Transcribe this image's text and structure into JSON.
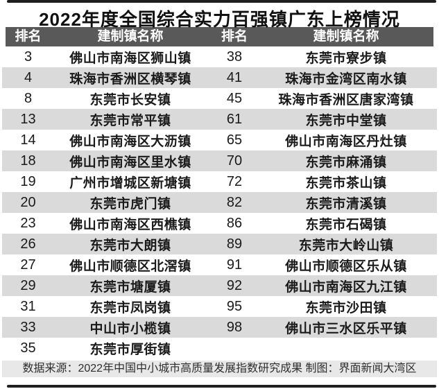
{
  "title": "2022年度全国综合实力百强镇广东上榜情况",
  "table": {
    "headers": {
      "rank_left": "排名",
      "name_left": "建制镇名称",
      "rank_right": "排名",
      "name_right": "建制镇名称"
    },
    "left_rows": [
      {
        "rank": "3",
        "name": "佛山市南海区狮山镇"
      },
      {
        "rank": "4",
        "name": "珠海市香洲区横琴镇"
      },
      {
        "rank": "8",
        "name": "东莞市长安镇"
      },
      {
        "rank": "13",
        "name": "东莞市常平镇"
      },
      {
        "rank": "14",
        "name": "佛山市南海区大沥镇"
      },
      {
        "rank": "18",
        "name": "佛山市南海区里水镇"
      },
      {
        "rank": "19",
        "name": "广州市增城区新塘镇"
      },
      {
        "rank": "20",
        "name": "东莞市虎门镇"
      },
      {
        "rank": "23",
        "name": "佛山市南海区西樵镇"
      },
      {
        "rank": "26",
        "name": "东莞市大朗镇"
      },
      {
        "rank": "27",
        "name": "佛山市顺德区北滘镇"
      },
      {
        "rank": "29",
        "name": "东莞市塘厦镇"
      },
      {
        "rank": "31",
        "name": "东莞市凤岗镇"
      },
      {
        "rank": "33",
        "name": "中山市小榄镇"
      },
      {
        "rank": "35",
        "name": "东莞市厚街镇"
      }
    ],
    "right_rows": [
      {
        "rank": "38",
        "name": "东莞市寮步镇"
      },
      {
        "rank": "41",
        "name": "珠海市金湾区南水镇"
      },
      {
        "rank": "45",
        "name": "珠海市香洲区唐家湾镇"
      },
      {
        "rank": "61",
        "name": "东莞市中堂镇"
      },
      {
        "rank": "65",
        "name": "佛山市南海区丹灶镇"
      },
      {
        "rank": "70",
        "name": "东莞市麻涌镇"
      },
      {
        "rank": "72",
        "name": "东莞市茶山镇"
      },
      {
        "rank": "82",
        "name": "东莞市清溪镇"
      },
      {
        "rank": "86",
        "name": "东莞市石碣镇"
      },
      {
        "rank": "89",
        "name": "东莞市大岭山镇"
      },
      {
        "rank": "91",
        "name": "佛山市顺德区乐从镇"
      },
      {
        "rank": "92",
        "name": "佛山市南海区九江镇"
      },
      {
        "rank": "95",
        "name": "东莞市沙田镇"
      },
      {
        "rank": "98",
        "name": "佛山市三水区乐平镇"
      }
    ],
    "row_count": 15
  },
  "footer": {
    "text": "数据来源：2022年中国中小城市高质量发展指数研究成果 制图：界面新闻大湾区"
  },
  "colors": {
    "header_bg": "#595959",
    "row_alt_bg": "#dadada",
    "footer_bg": "#e8e8e8",
    "strip": "#1f1f1f",
    "header_text": "#ffffff",
    "body_text": "#1a1a1a",
    "footer_text": "#2e2e2e"
  }
}
